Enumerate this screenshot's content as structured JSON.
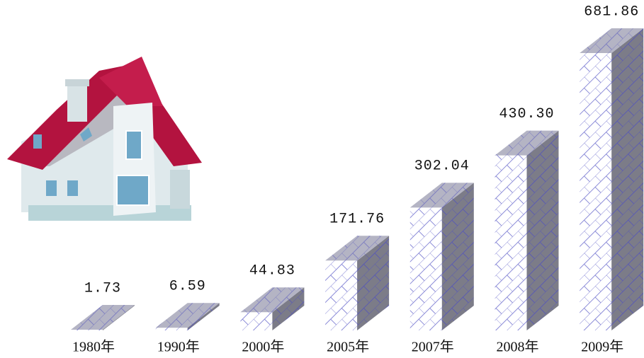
{
  "chart_data": {
    "type": "bar3d",
    "categories": [
      "1980年",
      "1990年",
      "2000年",
      "2005年",
      "2007年",
      "2008年",
      "2009年"
    ],
    "values": [
      1.73,
      6.59,
      44.83,
      171.76,
      302.04,
      430.3,
      681.86
    ],
    "value_labels": [
      "1.73",
      "6.59",
      "44.83",
      "171.76",
      "302.04",
      "430.30",
      "681.86"
    ],
    "color": "#6f6fcf"
  }
}
